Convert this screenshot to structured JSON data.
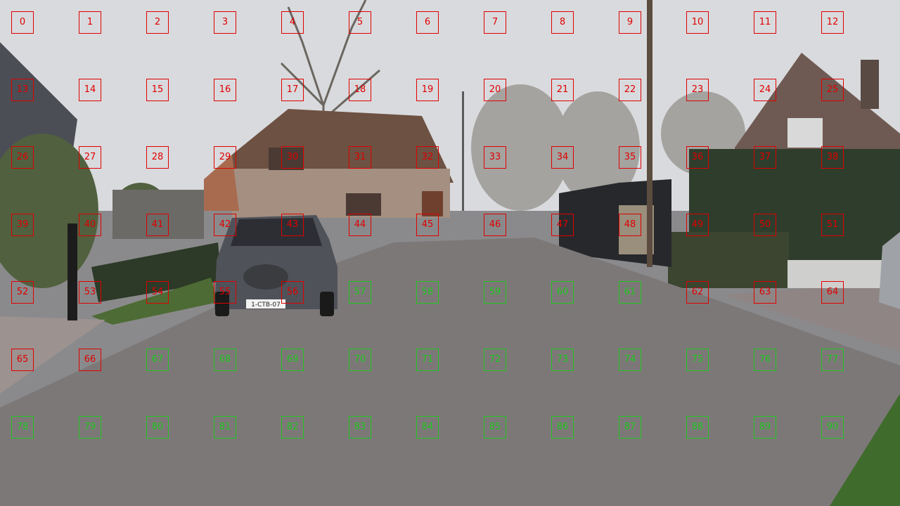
{
  "grid": {
    "columns": 13,
    "colors": {
      "blocked": "#e00000",
      "free": "#1ec81e"
    },
    "cells": [
      {
        "label": "0",
        "status": "blocked"
      },
      {
        "label": "1",
        "status": "blocked"
      },
      {
        "label": "2",
        "status": "blocked"
      },
      {
        "label": "3",
        "status": "blocked"
      },
      {
        "label": "4",
        "status": "blocked"
      },
      {
        "label": "5",
        "status": "blocked"
      },
      {
        "label": "6",
        "status": "blocked"
      },
      {
        "label": "7",
        "status": "blocked"
      },
      {
        "label": "8",
        "status": "blocked"
      },
      {
        "label": "9",
        "status": "blocked"
      },
      {
        "label": "10",
        "status": "blocked"
      },
      {
        "label": "11",
        "status": "blocked"
      },
      {
        "label": "12",
        "status": "blocked"
      },
      {
        "label": "13",
        "status": "blocked"
      },
      {
        "label": "14",
        "status": "blocked"
      },
      {
        "label": "15",
        "status": "blocked"
      },
      {
        "label": "16",
        "status": "blocked"
      },
      {
        "label": "17",
        "status": "blocked"
      },
      {
        "label": "18",
        "status": "blocked"
      },
      {
        "label": "19",
        "status": "blocked"
      },
      {
        "label": "20",
        "status": "blocked"
      },
      {
        "label": "21",
        "status": "blocked"
      },
      {
        "label": "22",
        "status": "blocked"
      },
      {
        "label": "23",
        "status": "blocked"
      },
      {
        "label": "24",
        "status": "blocked"
      },
      {
        "label": "25",
        "status": "blocked"
      },
      {
        "label": "26",
        "status": "blocked"
      },
      {
        "label": "27",
        "status": "blocked"
      },
      {
        "label": "28",
        "status": "blocked"
      },
      {
        "label": "29",
        "status": "blocked"
      },
      {
        "label": "30",
        "status": "blocked"
      },
      {
        "label": "31",
        "status": "blocked"
      },
      {
        "label": "32",
        "status": "blocked"
      },
      {
        "label": "33",
        "status": "blocked"
      },
      {
        "label": "34",
        "status": "blocked"
      },
      {
        "label": "35",
        "status": "blocked"
      },
      {
        "label": "36",
        "status": "blocked"
      },
      {
        "label": "37",
        "status": "blocked"
      },
      {
        "label": "38",
        "status": "blocked"
      },
      {
        "label": "39",
        "status": "blocked"
      },
      {
        "label": "40",
        "status": "blocked"
      },
      {
        "label": "41",
        "status": "blocked"
      },
      {
        "label": "42",
        "status": "blocked"
      },
      {
        "label": "43",
        "status": "blocked"
      },
      {
        "label": "44",
        "status": "blocked"
      },
      {
        "label": "45",
        "status": "blocked"
      },
      {
        "label": "46",
        "status": "blocked"
      },
      {
        "label": "47",
        "status": "blocked"
      },
      {
        "label": "48",
        "status": "blocked"
      },
      {
        "label": "49",
        "status": "blocked"
      },
      {
        "label": "50",
        "status": "blocked"
      },
      {
        "label": "51",
        "status": "blocked"
      },
      {
        "label": "52",
        "status": "blocked"
      },
      {
        "label": "53",
        "status": "blocked"
      },
      {
        "label": "54",
        "status": "blocked"
      },
      {
        "label": "55",
        "status": "blocked"
      },
      {
        "label": "56",
        "status": "blocked"
      },
      {
        "label": "57",
        "status": "free"
      },
      {
        "label": "58",
        "status": "free"
      },
      {
        "label": "59",
        "status": "free"
      },
      {
        "label": "60",
        "status": "free"
      },
      {
        "label": "61",
        "status": "free"
      },
      {
        "label": "62",
        "status": "blocked"
      },
      {
        "label": "63",
        "status": "blocked"
      },
      {
        "label": "64",
        "status": "blocked"
      },
      {
        "label": "65",
        "status": "blocked"
      },
      {
        "label": "66",
        "status": "blocked"
      },
      {
        "label": "67",
        "status": "free"
      },
      {
        "label": "68",
        "status": "free"
      },
      {
        "label": "69",
        "status": "free"
      },
      {
        "label": "70",
        "status": "free"
      },
      {
        "label": "71",
        "status": "free"
      },
      {
        "label": "72",
        "status": "free"
      },
      {
        "label": "73",
        "status": "free"
      },
      {
        "label": "74",
        "status": "free"
      },
      {
        "label": "75",
        "status": "free"
      },
      {
        "label": "76",
        "status": "free"
      },
      {
        "label": "77",
        "status": "free"
      },
      {
        "label": "78",
        "status": "free"
      },
      {
        "label": "79",
        "status": "free"
      },
      {
        "label": "80",
        "status": "free"
      },
      {
        "label": "81",
        "status": "free"
      },
      {
        "label": "82",
        "status": "free"
      },
      {
        "label": "83",
        "status": "free"
      },
      {
        "label": "84",
        "status": "free"
      },
      {
        "label": "85",
        "status": "free"
      },
      {
        "label": "86",
        "status": "free"
      },
      {
        "label": "87",
        "status": "free"
      },
      {
        "label": "88",
        "status": "free"
      },
      {
        "label": "89",
        "status": "free"
      },
      {
        "label": "90",
        "status": "free"
      }
    ]
  },
  "scene": {
    "car_plate": "1-CTB-07"
  }
}
